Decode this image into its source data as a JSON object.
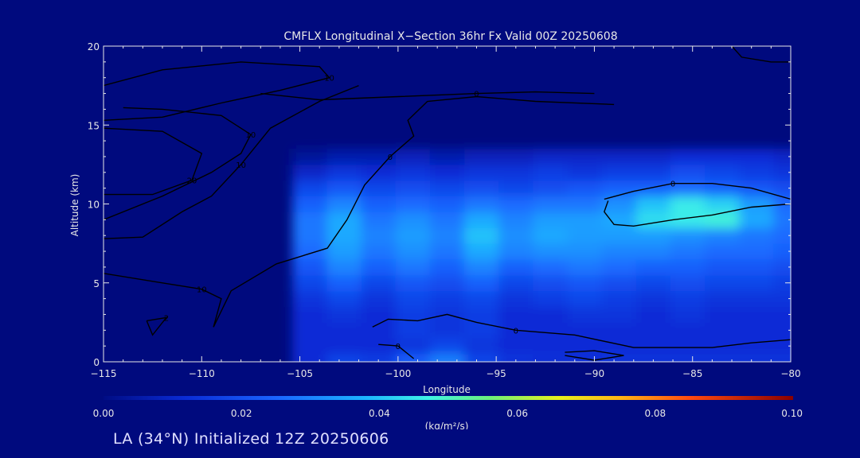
{
  "chart_data": {
    "type": "heatmap",
    "title": "CMFLX Longitudinal X−Section 36hr  Fx Valid 00Z 20250608",
    "xlabel": "Longitude",
    "ylabel": "Altitude (km)",
    "xlim": [
      -115,
      -80
    ],
    "ylim": [
      0,
      20
    ],
    "x_ticks": [
      -115,
      -110,
      -105,
      -100,
      -95,
      -90,
      -85,
      -80
    ],
    "x_tick_labels": [
      "−115",
      "−110",
      "−105",
      "−100",
      "−95",
      "−90",
      "−85",
      "−80"
    ],
    "y_ticks": [
      0,
      5,
      10,
      15,
      20
    ],
    "y_tick_labels": [
      "0",
      "5",
      "10",
      "15",
      "20"
    ],
    "colorbar": {
      "label": "(kg/m²/s)",
      "min": 0.0,
      "max": 0.1,
      "ticks": [
        0.0,
        0.02,
        0.04,
        0.06,
        0.08,
        0.1
      ],
      "tick_labels": [
        "0.00",
        "0.02",
        "0.04",
        "0.06",
        "0.08",
        "0.10"
      ]
    },
    "grid_x": [
      -115,
      -113.25,
      -111.5,
      -109.75,
      -108,
      -106.25,
      -104.5,
      -102.75,
      -101,
      -99.25,
      -97.5,
      -95.75,
      -94,
      -92.25,
      -90.5,
      -88.75,
      -87,
      -85.25,
      -83.5,
      -81.75,
      -80
    ],
    "grid_y": [
      0,
      1,
      2,
      3,
      4,
      5,
      6,
      7,
      8,
      9,
      10,
      11,
      12,
      13,
      14,
      15,
      16,
      17,
      18,
      19,
      20
    ],
    "values": [
      [
        0,
        0,
        0,
        0,
        0,
        0,
        0.012,
        0.018,
        0.016,
        0.024,
        0.03,
        0.018,
        0.014,
        0.013,
        0.013,
        0.014,
        0.014,
        0.014,
        0.014,
        0.014,
        0.014
      ],
      [
        0,
        0,
        0,
        0,
        0,
        0,
        0.012,
        0.012,
        0.012,
        0.014,
        0.018,
        0.014,
        0.012,
        0.012,
        0.012,
        0.012,
        0.012,
        0.012,
        0.012,
        0.012,
        0.012
      ],
      [
        0,
        0,
        0,
        0,
        0,
        0,
        0.012,
        0.012,
        0.012,
        0.016,
        0.014,
        0.016,
        0.012,
        0.012,
        0.012,
        0.012,
        0.012,
        0.012,
        0.012,
        0.012,
        0.012
      ],
      [
        0,
        0,
        0,
        0,
        0,
        0,
        0.012,
        0.014,
        0.012,
        0.016,
        0.014,
        0.016,
        0.012,
        0.012,
        0.014,
        0.014,
        0.012,
        0.014,
        0.012,
        0.012,
        0.012
      ],
      [
        0,
        0,
        0,
        0,
        0,
        0,
        0.014,
        0.018,
        0.014,
        0.018,
        0.016,
        0.018,
        0.014,
        0.016,
        0.018,
        0.016,
        0.014,
        0.016,
        0.014,
        0.014,
        0.014
      ],
      [
        0,
        0,
        0,
        0,
        0,
        0,
        0.018,
        0.024,
        0.018,
        0.022,
        0.02,
        0.024,
        0.018,
        0.02,
        0.022,
        0.02,
        0.018,
        0.02,
        0.018,
        0.018,
        0.016
      ],
      [
        0,
        0,
        0,
        0,
        0,
        0,
        0.022,
        0.03,
        0.024,
        0.028,
        0.024,
        0.03,
        0.024,
        0.026,
        0.028,
        0.026,
        0.024,
        0.024,
        0.022,
        0.022,
        0.02
      ],
      [
        0,
        0,
        0,
        0,
        0,
        0,
        0.026,
        0.034,
        0.028,
        0.032,
        0.028,
        0.036,
        0.03,
        0.032,
        0.032,
        0.03,
        0.03,
        0.028,
        0.026,
        0.026,
        0.024
      ],
      [
        0,
        0,
        0,
        0,
        0,
        0,
        0.028,
        0.036,
        0.03,
        0.034,
        0.03,
        0.04,
        0.032,
        0.036,
        0.034,
        0.034,
        0.034,
        0.032,
        0.03,
        0.028,
        0.026
      ],
      [
        0,
        0,
        0,
        0,
        0,
        0,
        0.028,
        0.036,
        0.028,
        0.032,
        0.028,
        0.036,
        0.03,
        0.034,
        0.034,
        0.036,
        0.044,
        0.046,
        0.048,
        0.036,
        0.028
      ],
      [
        0,
        0,
        0,
        0,
        0,
        0,
        0.024,
        0.03,
        0.024,
        0.026,
        0.024,
        0.028,
        0.026,
        0.028,
        0.028,
        0.032,
        0.04,
        0.046,
        0.042,
        0.034,
        0.026
      ],
      [
        0,
        0,
        0,
        0,
        0,
        0,
        0.018,
        0.022,
        0.018,
        0.02,
        0.018,
        0.02,
        0.018,
        0.02,
        0.022,
        0.024,
        0.024,
        0.026,
        0.024,
        0.022,
        0.02
      ],
      [
        0,
        0,
        0,
        0,
        0,
        0,
        0.01,
        0.014,
        0.012,
        0.014,
        0.012,
        0.014,
        0.014,
        0.016,
        0.014,
        0.016,
        0.016,
        0.02,
        0.018,
        0.016,
        0.014
      ],
      [
        0,
        0,
        0,
        0,
        0,
        0,
        0.003,
        0.006,
        0.006,
        0.008,
        0.006,
        0.008,
        0.008,
        0.01,
        0.01,
        0.01,
        0.01,
        0.012,
        0.012,
        0.012,
        0.01
      ],
      [
        0,
        0,
        0,
        0,
        0,
        0,
        0,
        0,
        0,
        0,
        0,
        0,
        0,
        0,
        0,
        0,
        0,
        0,
        0,
        0,
        0
      ],
      [
        0,
        0,
        0,
        0,
        0,
        0,
        0,
        0,
        0,
        0,
        0,
        0,
        0,
        0,
        0,
        0,
        0,
        0,
        0,
        0,
        0
      ],
      [
        0,
        0,
        0,
        0,
        0,
        0,
        0,
        0,
        0,
        0,
        0,
        0,
        0,
        0,
        0,
        0,
        0,
        0,
        0,
        0,
        0
      ],
      [
        0,
        0,
        0,
        0,
        0,
        0,
        0,
        0,
        0,
        0,
        0,
        0,
        0,
        0,
        0,
        0,
        0,
        0,
        0,
        0,
        0
      ],
      [
        0,
        0,
        0,
        0,
        0,
        0,
        0,
        0,
        0,
        0,
        0,
        0,
        0,
        0,
        0,
        0,
        0,
        0,
        0,
        0,
        0
      ],
      [
        0,
        0,
        0,
        0,
        0,
        0,
        0,
        0,
        0,
        0,
        0,
        0,
        0,
        0,
        0,
        0,
        0,
        0,
        0,
        0,
        0
      ],
      [
        0,
        0,
        0,
        0,
        0,
        0,
        0,
        0,
        0,
        0,
        0,
        0,
        0,
        0,
        0,
        0,
        0,
        0,
        0,
        0,
        0
      ]
    ],
    "contours": [
      {
        "label": "10",
        "points": [
          [
            -115,
            17.5
          ],
          [
            -112,
            18.5
          ],
          [
            -108,
            19
          ],
          [
            -104,
            18.7
          ],
          [
            -103.5,
            18
          ],
          [
            -106,
            17.2
          ],
          [
            -109,
            16.4
          ],
          [
            -112,
            15.5
          ],
          [
            -115,
            15.3
          ]
        ]
      },
      {
        "label": "20",
        "points": [
          [
            -115,
            14.8
          ],
          [
            -112,
            14.6
          ],
          [
            -110,
            13.2
          ],
          [
            -110.5,
            11.5
          ],
          [
            -112.5,
            10.6
          ],
          [
            -115,
            10.6
          ]
        ]
      },
      {
        "label": "10",
        "points": [
          [
            -115,
            9
          ],
          [
            -112,
            10.5
          ],
          [
            -109.5,
            12
          ],
          [
            -108,
            13.2
          ],
          [
            -107.5,
            14.4
          ],
          [
            -109,
            15.6
          ],
          [
            -112,
            16
          ],
          [
            -114,
            16.1
          ]
        ]
      },
      {
        "label": "10",
        "points": [
          [
            -115,
            7.8
          ],
          [
            -113,
            7.9
          ],
          [
            -111,
            9.5
          ],
          [
            -109.5,
            10.5
          ],
          [
            -108,
            12.5
          ],
          [
            -106.5,
            14.8
          ],
          [
            -104,
            16.5
          ],
          [
            -102,
            17.5
          ]
        ]
      },
      {
        "label": "10",
        "points": [
          [
            -115,
            5.6
          ],
          [
            -112,
            5
          ],
          [
            -110,
            4.6
          ],
          [
            -109,
            4
          ],
          [
            -109.4,
            2.2
          ]
        ]
      },
      {
        "label": "0",
        "points": [
          [
            -109.4,
            2.2
          ],
          [
            -108.5,
            4.5
          ],
          [
            -106.2,
            6.2
          ],
          [
            -103.6,
            7.2
          ],
          [
            -102.6,
            9
          ],
          [
            -101.7,
            11.2
          ],
          [
            -100.4,
            13
          ],
          [
            -99.2,
            14.3
          ],
          [
            -99.5,
            15.3
          ],
          [
            -98.5,
            16.5
          ],
          [
            -96,
            16.8
          ],
          [
            -93,
            16.5
          ],
          [
            -89,
            16.3
          ]
        ]
      },
      {
        "label": "0",
        "points": [
          [
            -107,
            17
          ],
          [
            -104,
            16.6
          ],
          [
            -100,
            16.8
          ],
          [
            -96,
            17
          ],
          [
            -93,
            17.1
          ],
          [
            -90,
            17
          ]
        ]
      },
      {
        "label": "2",
        "points": [
          [
            -112.8,
            2.6
          ],
          [
            -112.5,
            1.7
          ],
          [
            -111.8,
            2.8
          ],
          [
            -112.8,
            2.6
          ]
        ]
      },
      {
        "label": "0",
        "points": [
          [
            -101.3,
            2.2
          ],
          [
            -100.5,
            2.7
          ],
          [
            -99,
            2.6
          ],
          [
            -97.5,
            3
          ],
          [
            -96,
            2.5
          ],
          [
            -94,
            2
          ],
          [
            -91,
            1.7
          ],
          [
            -88,
            0.9
          ],
          [
            -84,
            0.9
          ],
          [
            -82,
            1.2
          ],
          [
            -80,
            1.4
          ]
        ]
      },
      {
        "label": "0",
        "points": [
          [
            -101,
            1.1
          ],
          [
            -100,
            1
          ],
          [
            -99.2,
            0.2
          ]
        ]
      },
      {
        "label": "0",
        "points": [
          [
            -80,
            10.3
          ],
          [
            -82,
            11
          ],
          [
            -84,
            11.3
          ],
          [
            -86,
            11.3
          ],
          [
            -88,
            10.8
          ],
          [
            -89.5,
            10.3
          ]
        ]
      },
      {
        "label": "",
        "points": [
          [
            -80,
            10
          ],
          [
            -82,
            9.8
          ],
          [
            -84,
            9.3
          ],
          [
            -86,
            9
          ],
          [
            -88,
            8.6
          ],
          [
            -89,
            8.7
          ],
          [
            -89.5,
            9.5
          ],
          [
            -89.3,
            10.2
          ]
        ]
      },
      {
        "label": "",
        "points": [
          [
            -91.5,
            0.6
          ],
          [
            -90,
            0.7
          ],
          [
            -88.5,
            0.4
          ],
          [
            -90,
            0.1
          ],
          [
            -91.5,
            0.4
          ]
        ]
      },
      {
        "label": "",
        "points": [
          [
            -83,
            20
          ],
          [
            -82.5,
            19.3
          ],
          [
            -81,
            19
          ],
          [
            -80,
            19
          ]
        ]
      }
    ]
  },
  "footer_text": "LA (34°N) Initialized 12Z 20250606"
}
